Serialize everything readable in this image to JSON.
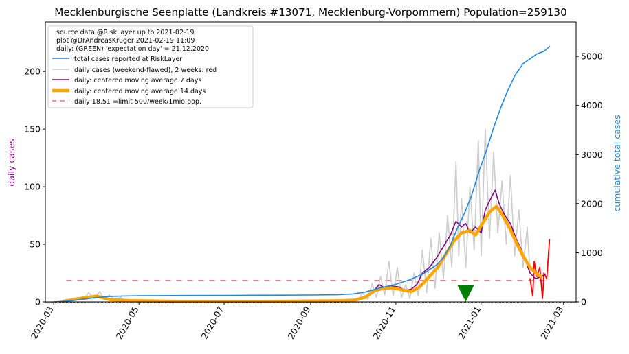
{
  "chart_data": {
    "type": "line",
    "title": "Mecklenburgische Seenplatte (Landkreis #13071, Mecklenburg-Vorpommern) Population=259130",
    "ylabel_left": "daily cases",
    "ylabel_right": "cumulative total cases",
    "xlim": [
      "2020-02-24",
      "2021-03-10"
    ],
    "ylim_left": [
      0,
      243
    ],
    "ylim_right": [
      0,
      5700
    ],
    "x_ticks": [
      "2020-03-01",
      "2020-05-01",
      "2020-07-01",
      "2020-09-01",
      "2020-11-01",
      "2021-01-01",
      "2021-03-01"
    ],
    "x_tick_labels": [
      "2020-03",
      "2020-05",
      "2020-07",
      "2020-09",
      "2020-11",
      "2021-01",
      "2021-03"
    ],
    "y_ticks_left": [
      0,
      50,
      100,
      150,
      200
    ],
    "y_ticks_right": [
      0,
      1000,
      2000,
      3000,
      4000,
      5000
    ],
    "legend": {
      "placement": "top-left",
      "header": [
        "source data @RiskLayer up to 2021-02-19",
        "plot @DrAndreasKruger 2021-02-19 11:09",
        "daily: (GREEN) 'expectation day' = 21.12.2020"
      ],
      "entries": [
        {
          "label": "total cases reported at RiskLayer",
          "color": "#1e88e5",
          "style": "line"
        },
        {
          "label": "daily cases (weekend-flawed), 2 weeks: red",
          "color": "#cccccc",
          "style": "line"
        },
        {
          "label": "daily: centered moving average 7 days",
          "color": "#800080",
          "style": "line"
        },
        {
          "label": "daily: centered moving average 14 days",
          "color": "#ffa500",
          "style": "thick"
        },
        {
          "label": "daily 18.51 =limit 500/week/1mio pop.",
          "color": "#e87070",
          "style": "dashed"
        }
      ]
    },
    "limit_line": {
      "value": 18.51,
      "color": "#e87070"
    },
    "expectation_day": {
      "date": "2020-12-21",
      "value": 6,
      "color": "#008000"
    },
    "series": [
      {
        "name": "total cases reported at RiskLayer",
        "axis": "right",
        "color": "#1e88e5",
        "points": [
          [
            "2020-03-01",
            0
          ],
          [
            "2020-03-10",
            15
          ],
          [
            "2020-03-20",
            45
          ],
          [
            "2020-04-01",
            90
          ],
          [
            "2020-04-10",
            110
          ],
          [
            "2020-04-20",
            120
          ],
          [
            "2020-05-01",
            125
          ],
          [
            "2020-06-01",
            130
          ],
          [
            "2020-07-01",
            133
          ],
          [
            "2020-08-01",
            136
          ],
          [
            "2020-09-01",
            140
          ],
          [
            "2020-09-20",
            145
          ],
          [
            "2020-10-01",
            160
          ],
          [
            "2020-10-10",
            200
          ],
          [
            "2020-10-20",
            280
          ],
          [
            "2020-10-31",
            350
          ],
          [
            "2020-11-10",
            440
          ],
          [
            "2020-11-20",
            560
          ],
          [
            "2020-11-30",
            750
          ],
          [
            "2020-12-05",
            900
          ],
          [
            "2020-12-10",
            1150
          ],
          [
            "2020-12-15",
            1500
          ],
          [
            "2020-12-20",
            1800
          ],
          [
            "2020-12-25",
            2150
          ],
          [
            "2020-12-31",
            2700
          ],
          [
            "2021-01-05",
            3100
          ],
          [
            "2021-01-10",
            3550
          ],
          [
            "2021-01-15",
            3950
          ],
          [
            "2021-01-20",
            4300
          ],
          [
            "2021-01-25",
            4600
          ],
          [
            "2021-01-31",
            4850
          ],
          [
            "2021-02-05",
            4950
          ],
          [
            "2021-02-10",
            5050
          ],
          [
            "2021-02-15",
            5100
          ],
          [
            "2021-02-19",
            5200
          ]
        ]
      },
      {
        "name": "daily cases (weekend-flawed), 2 weeks: red",
        "axis": "left",
        "color": "#cccccc",
        "points": [
          [
            "2020-03-05",
            0
          ],
          [
            "2020-03-10",
            2
          ],
          [
            "2020-03-14",
            1
          ],
          [
            "2020-03-18",
            4
          ],
          [
            "2020-03-22",
            2
          ],
          [
            "2020-03-26",
            8
          ],
          [
            "2020-03-30",
            3
          ],
          [
            "2020-04-03",
            9
          ],
          [
            "2020-04-06",
            2
          ],
          [
            "2020-04-10",
            6
          ],
          [
            "2020-04-14",
            1
          ],
          [
            "2020-04-18",
            4
          ],
          [
            "2020-04-22",
            0
          ],
          [
            "2020-05-01",
            1
          ],
          [
            "2020-06-01",
            0
          ],
          [
            "2020-07-01",
            1
          ],
          [
            "2020-08-01",
            0
          ],
          [
            "2020-09-01",
            1
          ],
          [
            "2020-09-25",
            2
          ],
          [
            "2020-10-01",
            3
          ],
          [
            "2020-10-05",
            1
          ],
          [
            "2020-10-08",
            8
          ],
          [
            "2020-10-12",
            2
          ],
          [
            "2020-10-15",
            16
          ],
          [
            "2020-10-18",
            4
          ],
          [
            "2020-10-21",
            22
          ],
          [
            "2020-10-24",
            6
          ],
          [
            "2020-10-27",
            35
          ],
          [
            "2020-10-30",
            5
          ],
          [
            "2020-11-02",
            30
          ],
          [
            "2020-11-05",
            4
          ],
          [
            "2020-11-08",
            15
          ],
          [
            "2020-11-11",
            3
          ],
          [
            "2020-11-14",
            25
          ],
          [
            "2020-11-17",
            5
          ],
          [
            "2020-11-20",
            45
          ],
          [
            "2020-11-23",
            8
          ],
          [
            "2020-11-26",
            55
          ],
          [
            "2020-11-29",
            12
          ],
          [
            "2020-12-02",
            60
          ],
          [
            "2020-12-05",
            20
          ],
          [
            "2020-12-08",
            75
          ],
          [
            "2020-12-11",
            30
          ],
          [
            "2020-12-14",
            122
          ],
          [
            "2020-12-16",
            40
          ],
          [
            "2020-12-18",
            90
          ],
          [
            "2020-12-21",
            30
          ],
          [
            "2020-12-24",
            100
          ],
          [
            "2020-12-27",
            45
          ],
          [
            "2020-12-30",
            140
          ],
          [
            "2021-01-01",
            40
          ],
          [
            "2021-01-04",
            150
          ],
          [
            "2021-01-07",
            55
          ],
          [
            "2021-01-10",
            130
          ],
          [
            "2021-01-13",
            60
          ],
          [
            "2021-01-16",
            105
          ],
          [
            "2021-01-19",
            50
          ],
          [
            "2021-01-22",
            110
          ],
          [
            "2021-01-25",
            40
          ],
          [
            "2021-01-28",
            80
          ],
          [
            "2021-01-31",
            30
          ],
          [
            "2021-02-03",
            65
          ],
          [
            "2021-02-05",
            25
          ]
        ]
      },
      {
        "name": "daily cases, last 2 weeks",
        "axis": "left",
        "color": "#ff0000",
        "points": [
          [
            "2021-02-05",
            20
          ],
          [
            "2021-02-07",
            5
          ],
          [
            "2021-02-08",
            35
          ],
          [
            "2021-02-10",
            22
          ],
          [
            "2021-02-12",
            30
          ],
          [
            "2021-02-14",
            3
          ],
          [
            "2021-02-15",
            25
          ],
          [
            "2021-02-17",
            20
          ],
          [
            "2021-02-19",
            54
          ]
        ]
      },
      {
        "name": "daily: centered moving average 7 days",
        "axis": "left",
        "color": "#800080",
        "points": [
          [
            "2020-10-10",
            3
          ],
          [
            "2020-10-15",
            8
          ],
          [
            "2020-10-20",
            15
          ],
          [
            "2020-10-24",
            12
          ],
          [
            "2020-10-28",
            14
          ],
          [
            "2020-11-03",
            13
          ],
          [
            "2020-11-08",
            10
          ],
          [
            "2020-11-12",
            11
          ],
          [
            "2020-11-16",
            15
          ],
          [
            "2020-11-20",
            25
          ],
          [
            "2020-11-25",
            30
          ],
          [
            "2020-11-30",
            38
          ],
          [
            "2020-12-05",
            48
          ],
          [
            "2020-12-10",
            58
          ],
          [
            "2020-12-14",
            70
          ],
          [
            "2020-12-18",
            65
          ],
          [
            "2020-12-21",
            68
          ],
          [
            "2020-12-24",
            60
          ],
          [
            "2020-12-28",
            65
          ],
          [
            "2021-01-01",
            60
          ],
          [
            "2021-01-04",
            80
          ],
          [
            "2021-01-08",
            90
          ],
          [
            "2021-01-11",
            97
          ],
          [
            "2021-01-14",
            85
          ],
          [
            "2021-01-18",
            75
          ],
          [
            "2021-01-22",
            68
          ],
          [
            "2021-01-26",
            55
          ],
          [
            "2021-01-30",
            45
          ],
          [
            "2021-02-02",
            35
          ],
          [
            "2021-02-05",
            25
          ],
          [
            "2021-02-09",
            20
          ],
          [
            "2021-02-13",
            22
          ],
          [
            "2021-02-16",
            24
          ]
        ]
      },
      {
        "name": "daily: centered moving average 14 days",
        "axis": "left",
        "color": "#ffa500",
        "points": [
          [
            "2020-03-08",
            0.5
          ],
          [
            "2020-03-20",
            3
          ],
          [
            "2020-04-01",
            5
          ],
          [
            "2020-04-10",
            2
          ],
          [
            "2020-04-25",
            1
          ],
          [
            "2020-06-01",
            0.5
          ],
          [
            "2020-08-01",
            0.5
          ],
          [
            "2020-10-01",
            1
          ],
          [
            "2020-10-10",
            4
          ],
          [
            "2020-10-17",
            10
          ],
          [
            "2020-10-24",
            12
          ],
          [
            "2020-10-31",
            12
          ],
          [
            "2020-11-07",
            10
          ],
          [
            "2020-11-12",
            9
          ],
          [
            "2020-11-18",
            13
          ],
          [
            "2020-11-25",
            22
          ],
          [
            "2020-12-01",
            30
          ],
          [
            "2020-12-07",
            42
          ],
          [
            "2020-12-12",
            52
          ],
          [
            "2020-12-18",
            60
          ],
          [
            "2020-12-24",
            62
          ],
          [
            "2020-12-28",
            58
          ],
          [
            "2021-01-02",
            68
          ],
          [
            "2021-01-07",
            78
          ],
          [
            "2021-01-12",
            83
          ],
          [
            "2021-01-16",
            76
          ],
          [
            "2021-01-21",
            65
          ],
          [
            "2021-01-26",
            52
          ],
          [
            "2021-01-31",
            40
          ],
          [
            "2021-02-05",
            30
          ],
          [
            "2021-02-10",
            24
          ],
          [
            "2021-02-13",
            22
          ]
        ]
      }
    ]
  }
}
